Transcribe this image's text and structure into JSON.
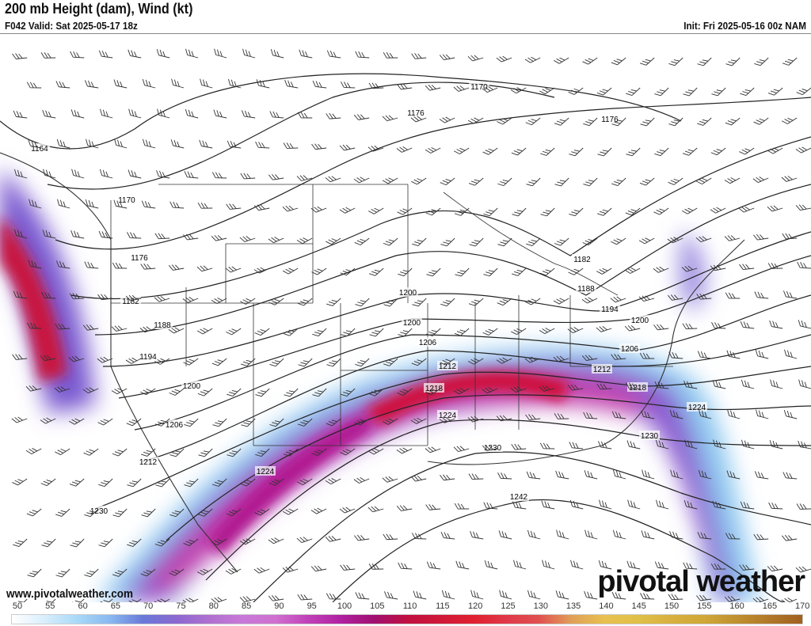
{
  "header": {
    "title": "200 mb Height (dam), Wind (kt)",
    "valid": "F042 Valid: Sat 2025-05-17 18z",
    "init": "Init: Fri 2025-05-16 00z NAM"
  },
  "footer": {
    "website": "www.pivotalweather.com",
    "logo": "pivotal weather"
  },
  "colorbar": {
    "unit": "kt",
    "ticks": [
      "50",
      "55",
      "60",
      "65",
      "70",
      "75",
      "80",
      "85",
      "90",
      "95",
      "100",
      "105",
      "110",
      "115",
      "120",
      "125",
      "130",
      "135",
      "140",
      "145",
      "150",
      "155",
      "160",
      "165",
      "170"
    ],
    "colors": [
      "#ffffff",
      "#d8eefc",
      "#a8d8f8",
      "#88b8f0",
      "#6a78d8",
      "#8c68d0",
      "#b070d0",
      "#c878d8",
      "#d070d0",
      "#c040b8",
      "#b020a0",
      "#a01070",
      "#c01040",
      "#d01838",
      "#e02030",
      "#e03848",
      "#e05050",
      "#e0a058",
      "#e8c050",
      "#e0c048",
      "#d8b040",
      "#d0a838",
      "#c09030",
      "#b07828",
      "#a06020"
    ]
  },
  "contours": {
    "labels": [
      "1164",
      "1170",
      "1176",
      "1182",
      "1188",
      "1194",
      "1200",
      "1206",
      "1212",
      "1218",
      "1224",
      "1230",
      "1236",
      "1242"
    ]
  }
}
